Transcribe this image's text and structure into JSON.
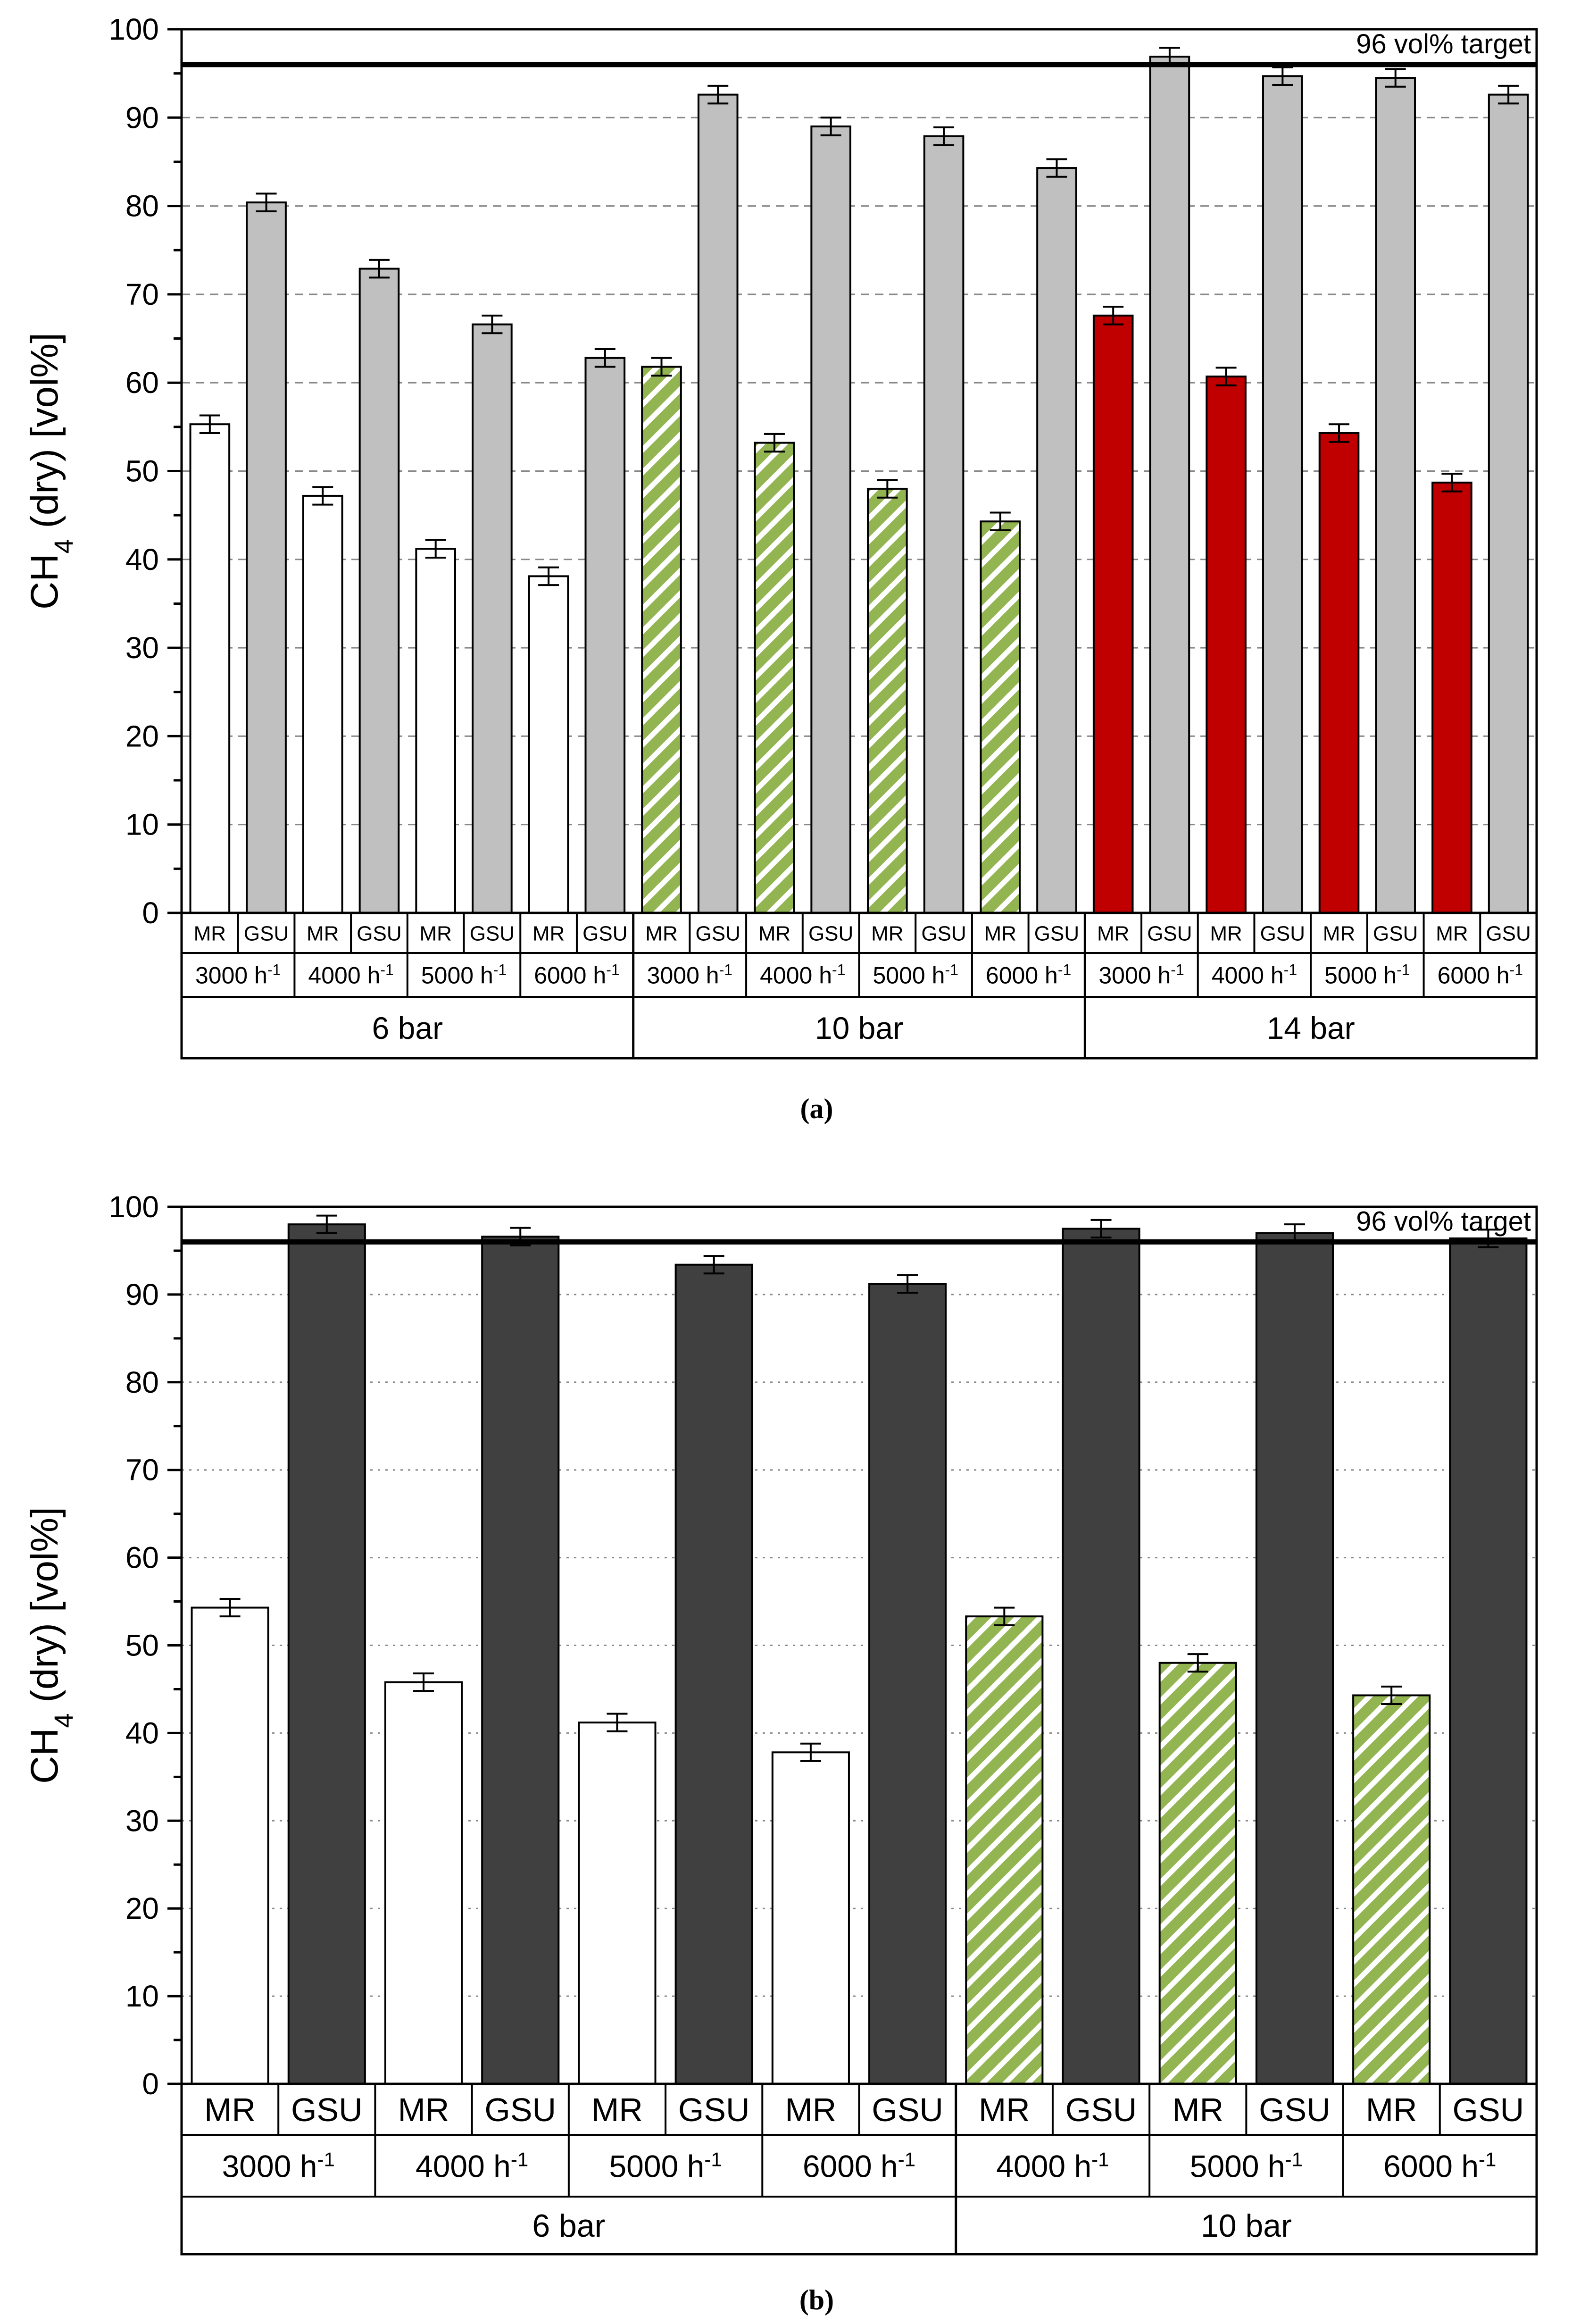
{
  "chart_data": [
    {
      "type": "bar",
      "caption": "(a)",
      "ylabel_main": "CH",
      "ylabel_sub": "4",
      "ylabel_rest": " (dry) [vol%]",
      "ylim": [
        0,
        100
      ],
      "y_major_ticks": [
        0,
        10,
        20,
        30,
        40,
        50,
        60,
        70,
        80,
        90,
        100
      ],
      "grid": "dashed horizontal",
      "reference_line": {
        "value": 96,
        "label": "96 vol% target"
      },
      "categories_level1": [
        "MR",
        "GSU",
        "MR",
        "GSU",
        "MR",
        "GSU",
        "MR",
        "GSU",
        "MR",
        "GSU",
        "MR",
        "GSU",
        "MR",
        "GSU",
        "MR",
        "GSU",
        "MR",
        "GSU",
        "MR",
        "GSU",
        "MR",
        "GSU",
        "MR",
        "GSU"
      ],
      "categories_level2": [
        {
          "base": "3000 h",
          "sup": "-1"
        },
        {
          "base": "4000 h",
          "sup": "-1"
        },
        {
          "base": "5000 h",
          "sup": "-1"
        },
        {
          "base": "6000 h",
          "sup": "-1"
        },
        {
          "base": "3000 h",
          "sup": "-1"
        },
        {
          "base": "4000 h",
          "sup": "-1"
        },
        {
          "base": "5000 h",
          "sup": "-1"
        },
        {
          "base": "6000 h",
          "sup": "-1"
        },
        {
          "base": "3000 h",
          "sup": "-1"
        },
        {
          "base": "4000 h",
          "sup": "-1"
        },
        {
          "base": "5000 h",
          "sup": "-1"
        },
        {
          "base": "6000 h",
          "sup": "-1"
        }
      ],
      "categories_level3": [
        "6 bar",
        "10 bar",
        "14 bar"
      ],
      "values": [
        55.3,
        80.4,
        47.2,
        72.9,
        41.2,
        66.6,
        38.1,
        62.8,
        61.8,
        92.6,
        53.2,
        89.0,
        48.0,
        87.9,
        44.3,
        84.3,
        67.6,
        96.9,
        60.7,
        94.7,
        54.3,
        94.5,
        48.7,
        92.6
      ],
      "errors": [
        1.0,
        1.0,
        1.0,
        1.0,
        1.0,
        1.0,
        1.0,
        1.0,
        1.0,
        1.0,
        1.0,
        1.0,
        1.0,
        1.0,
        1.0,
        1.0,
        1.0,
        1.0,
        1.0,
        1.0,
        1.0,
        1.0,
        1.0,
        1.0
      ],
      "bar_styles": [
        "white",
        "gray",
        "white",
        "gray",
        "white",
        "gray",
        "white",
        "gray",
        "green-hatch",
        "gray",
        "green-hatch",
        "gray",
        "green-hatch",
        "gray",
        "green-hatch",
        "gray",
        "red",
        "gray",
        "red",
        "gray",
        "red",
        "gray",
        "red",
        "gray"
      ],
      "colors": {
        "white": "#ffffff",
        "gray": "#c0c0c0",
        "red": "#c00000",
        "green": "#92b552",
        "dark": "#404040"
      }
    },
    {
      "type": "bar",
      "caption": "(b)",
      "ylabel_main": "CH",
      "ylabel_sub": "4",
      "ylabel_rest": " (dry) [vol%]",
      "ylim": [
        0,
        100
      ],
      "y_major_ticks": [
        0,
        10,
        20,
        30,
        40,
        50,
        60,
        70,
        80,
        90,
        100
      ],
      "grid": "dotted horizontal",
      "reference_line": {
        "value": 96,
        "label": "96 vol% target"
      },
      "categories_level1": [
        "MR",
        "GSU",
        "MR",
        "GSU",
        "MR",
        "GSU",
        "MR",
        "GSU",
        "MR",
        "GSU",
        "MR",
        "GSU",
        "MR",
        "GSU"
      ],
      "categories_level2": [
        {
          "base": "3000 h",
          "sup": "-1"
        },
        {
          "base": "4000 h",
          "sup": "-1"
        },
        {
          "base": "5000 h",
          "sup": "-1"
        },
        {
          "base": "6000 h",
          "sup": "-1"
        },
        {
          "base": "4000 h",
          "sup": "-1"
        },
        {
          "base": "5000 h",
          "sup": "-1"
        },
        {
          "base": "6000 h",
          "sup": "-1"
        }
      ],
      "categories_level3": [
        "6 bar",
        "10 bar"
      ],
      "level3_spans": [
        4,
        3
      ],
      "values": [
        54.3,
        98.0,
        45.8,
        96.6,
        41.2,
        93.4,
        37.8,
        91.2,
        53.3,
        97.5,
        48.0,
        97.0,
        44.3,
        96.4
      ],
      "errors": [
        1.0,
        1.0,
        1.0,
        1.0,
        1.0,
        1.0,
        1.0,
        1.0,
        1.0,
        1.0,
        1.0,
        1.0,
        1.0,
        1.0
      ],
      "bar_styles": [
        "white",
        "dark",
        "white",
        "dark",
        "white",
        "dark",
        "white",
        "dark",
        "green-hatch",
        "dark",
        "green-hatch",
        "dark",
        "green-hatch",
        "dark"
      ],
      "colors": {
        "white": "#ffffff",
        "gray": "#c0c0c0",
        "red": "#c00000",
        "green": "#92b552",
        "dark": "#404040"
      }
    }
  ]
}
